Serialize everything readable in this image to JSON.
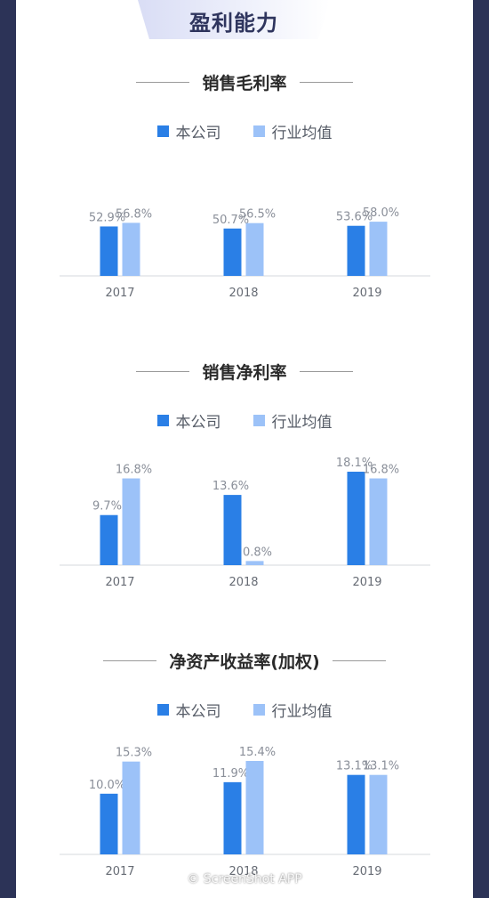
{
  "header": {
    "title": "盈利能力"
  },
  "legend": {
    "company": "本公司",
    "industry": "行业均值"
  },
  "colors": {
    "company": "#2a7fe6",
    "industry": "#9cc2f8"
  },
  "watermark": "© ScreenShot APP",
  "chart_data": [
    {
      "type": "bar",
      "title": "销售毛利率",
      "categories": [
        "2017",
        "2018",
        "2019"
      ],
      "series": [
        {
          "name": "本公司",
          "values": [
            52.9,
            50.7,
            53.6
          ],
          "labels": [
            "52.9%",
            "50.7%",
            "53.6%"
          ]
        },
        {
          "name": "行业均值",
          "values": [
            56.8,
            56.5,
            58.0
          ],
          "labels": [
            "56.8%",
            "56.5%",
            "58.0%"
          ]
        }
      ],
      "ylim": [
        0,
        100
      ]
    },
    {
      "type": "bar",
      "title": "销售净利率",
      "categories": [
        "2017",
        "2018",
        "2019"
      ],
      "series": [
        {
          "name": "本公司",
          "values": [
            9.7,
            13.6,
            18.1
          ],
          "labels": [
            "9.7%",
            "13.6%",
            "18.1%"
          ]
        },
        {
          "name": "行业均值",
          "values": [
            16.8,
            0.8,
            16.8
          ],
          "labels": [
            "16.8%",
            "0.8%",
            "16.8%"
          ]
        }
      ],
      "ylim": [
        0,
        18.1
      ]
    },
    {
      "type": "bar",
      "title": "净资产收益率(加权)",
      "categories": [
        "2017",
        "2018",
        "2019"
      ],
      "series": [
        {
          "name": "本公司",
          "values": [
            10.0,
            11.9,
            13.1
          ],
          "labels": [
            "10.0%",
            "11.9%",
            "13.1%"
          ]
        },
        {
          "name": "行业均值",
          "values": [
            15.3,
            15.4,
            13.1
          ],
          "labels": [
            "15.3%",
            "15.4%",
            "13.1%"
          ]
        }
      ],
      "ylim": [
        0,
        15.4
      ]
    }
  ]
}
